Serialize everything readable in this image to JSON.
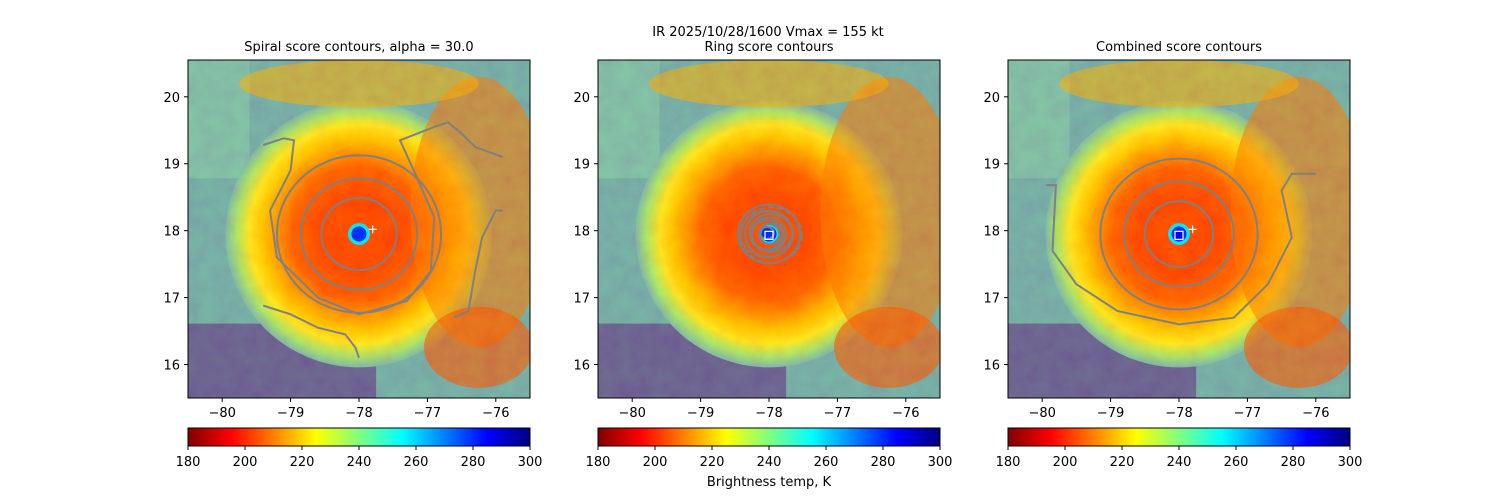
{
  "suptitle": "IR  2025/10/28/1600    Vmax = 155 kt",
  "colors": {
    "jet": [
      "#800000",
      "#ff0000",
      "#ff8000",
      "#ffff00",
      "#80ff80",
      "#00ffff",
      "#0080ff",
      "#0000ff",
      "#000080"
    ],
    "contour": "#808080",
    "marker_edge": "#ffffff",
    "combined_marker_fill": "#0000ff"
  },
  "chart_data": [
    {
      "type": "heatmap",
      "title": "Spiral score contours, alpha = 30.0",
      "xlim": [
        -80.5,
        -75.5
      ],
      "ylim": [
        15.5,
        20.55
      ],
      "xticks": [
        -80,
        -79,
        -78,
        -77,
        -76
      ],
      "xtick_labels": [
        "−80",
        "−79",
        "−78",
        "−77",
        "−76"
      ],
      "yticks": [
        16,
        17,
        18,
        19,
        20
      ],
      "ytick_labels": [
        "16",
        "17",
        "18",
        "19",
        "20"
      ],
      "eye_center": [
        -78.0,
        17.95
      ],
      "marker": {
        "symbol": "plus",
        "x": -77.8,
        "y": 18.02
      },
      "contour_rings_deg": [
        0.55,
        0.85,
        1.2
      ],
      "colorbar": {
        "min": 180,
        "max": 300,
        "ticks": [
          180,
          200,
          220,
          240,
          260,
          280,
          300
        ],
        "tick_labels": [
          "180",
          "200",
          "220",
          "240",
          "260",
          "280",
          "300"
        ],
        "label": ""
      }
    },
    {
      "type": "heatmap",
      "title": "Ring score contours",
      "xlim": [
        -80.5,
        -75.5
      ],
      "ylim": [
        15.5,
        20.55
      ],
      "xticks": [
        -80,
        -79,
        -78,
        -77,
        -76
      ],
      "xtick_labels": [
        "−80",
        "−79",
        "−78",
        "−77",
        "−76"
      ],
      "yticks": [
        16,
        17,
        18,
        19,
        20
      ],
      "ytick_labels": [
        "16",
        "17",
        "18",
        "19",
        "20"
      ],
      "eye_center": [
        -78.0,
        17.95
      ],
      "marker": {
        "symbol": "square",
        "x": -78.0,
        "y": 17.93
      },
      "contour_rings_deg": [
        0.15,
        0.25,
        0.35,
        0.45
      ],
      "colorbar": {
        "min": 180,
        "max": 300,
        "ticks": [
          180,
          200,
          220,
          240,
          260,
          280,
          300
        ],
        "tick_labels": [
          "180",
          "200",
          "220",
          "240",
          "260",
          "280",
          "300"
        ],
        "label": "Brightness temp, K"
      }
    },
    {
      "type": "heatmap",
      "title": "Combined score contours",
      "xlim": [
        -80.5,
        -75.5
      ],
      "ylim": [
        15.5,
        20.55
      ],
      "xticks": [
        -80,
        -79,
        -78,
        -77,
        -76
      ],
      "xtick_labels": [
        "−80",
        "−79",
        "−78",
        "−77",
        "−76"
      ],
      "yticks": [
        16,
        17,
        18,
        19,
        20
      ],
      "ytick_labels": [
        "16",
        "17",
        "18",
        "19",
        "20"
      ],
      "eye_center": [
        -78.0,
        17.95
      ],
      "marker": {
        "symbol": "square",
        "x": -78.0,
        "y": 17.93
      },
      "marker2": {
        "symbol": "plus",
        "x": -77.8,
        "y": 18.02
      },
      "contour_rings_deg": [
        0.5,
        0.8,
        1.15
      ],
      "colorbar": {
        "min": 180,
        "max": 300,
        "ticks": [
          180,
          200,
          220,
          240,
          260,
          280,
          300
        ],
        "tick_labels": [
          "180",
          "200",
          "220",
          "240",
          "260",
          "280",
          "300"
        ],
        "label": ""
      }
    }
  ]
}
